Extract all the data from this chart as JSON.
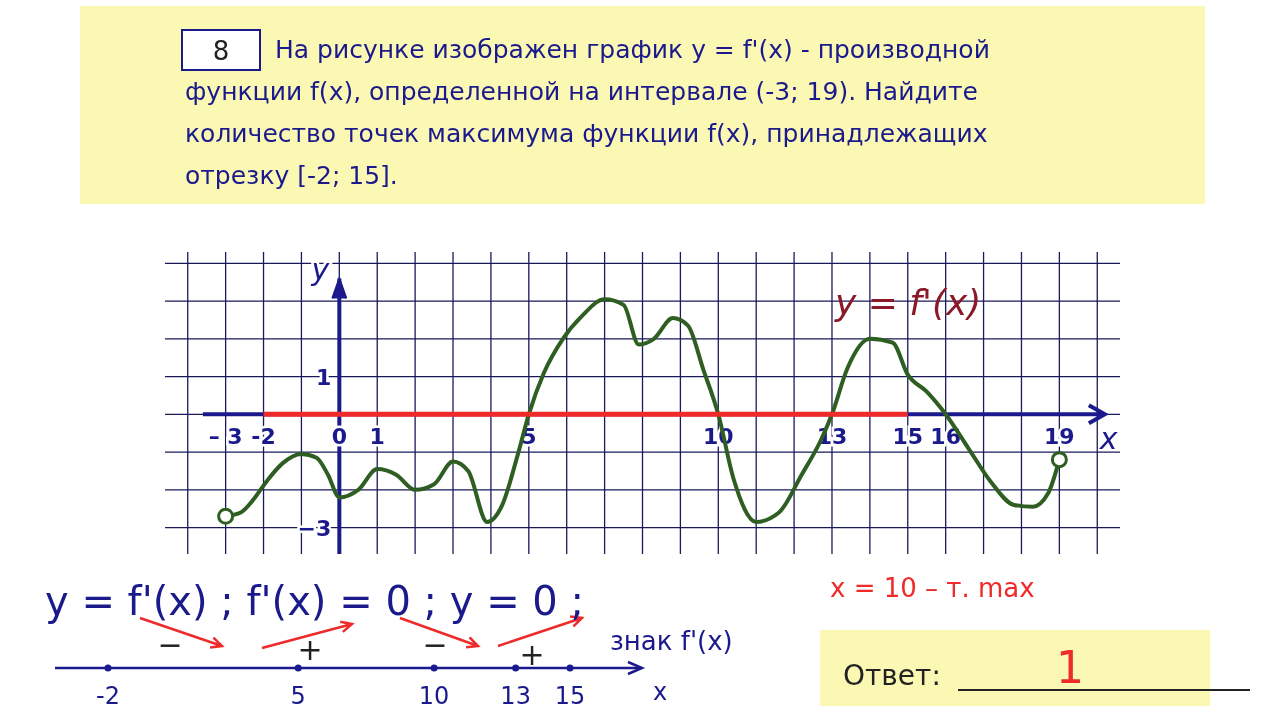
{
  "chart_data": {
    "type": "line",
    "title": "На рисунке изображен график y = f'(x) - производной функции f(x), определенной на интервале (-3; 19). Найдите количество точек максимума функции f(x), принадлежащих отрезку [-2; 15].",
    "xlabel": "x",
    "ylabel": "y",
    "xlim": [
      -4.6,
      20.6
    ],
    "ylim": [
      -3.7,
      4.3
    ],
    "xticks": [
      {
        "value": -4,
        "label": null
      },
      {
        "value": -3,
        "label": "– 3"
      },
      {
        "value": -2,
        "label": "-2"
      },
      {
        "value": -1,
        "label": null
      },
      {
        "value": 0,
        "label": "0"
      },
      {
        "value": 1,
        "label": "1"
      },
      {
        "value": 2,
        "label": null
      },
      {
        "value": 3,
        "label": null
      },
      {
        "value": 4,
        "label": null
      },
      {
        "value": 5,
        "label": "5"
      },
      {
        "value": 6,
        "label": null
      },
      {
        "value": 7,
        "label": null
      },
      {
        "value": 8,
        "label": null
      },
      {
        "value": 9,
        "label": null
      },
      {
        "value": 10,
        "label": "10"
      },
      {
        "value": 11,
        "label": null
      },
      {
        "value": 12,
        "label": null
      },
      {
        "value": 13,
        "label": "13"
      },
      {
        "value": 14,
        "label": null
      },
      {
        "value": 15,
        "label": "15"
      },
      {
        "value": 16,
        "label": "16"
      },
      {
        "value": 17,
        "label": null
      },
      {
        "value": 18,
        "label": null
      },
      {
        "value": 19,
        "label": "19"
      },
      {
        "value": 20,
        "label": null
      }
    ],
    "yticks": [
      {
        "value": -3,
        "label": "−3"
      },
      {
        "value": -2,
        "label": null
      },
      {
        "value": -1,
        "label": null
      },
      {
        "value": 0,
        "label": null
      },
      {
        "value": 1,
        "label": "1"
      },
      {
        "value": 2,
        "label": null
      },
      {
        "value": 3,
        "label": null
      },
      {
        "value": 4,
        "label": null
      }
    ],
    "grid": true,
    "marker": "none",
    "line_style": "solid",
    "series": [
      {
        "name": "y = f'(x)",
        "color": "#2f5e22",
        "x": [
          -3,
          -2.6,
          -2.3,
          -1.9,
          -1.5,
          -1.0,
          -0.6,
          -0.3,
          0,
          0.5,
          1,
          1.5,
          2,
          2.5,
          3,
          3.4,
          3.9,
          4.3,
          4.7,
          5,
          5.4,
          5.9,
          6.4,
          7,
          7.5,
          7.9,
          8.3,
          8.8,
          9.2,
          9.6,
          10,
          10.4,
          11,
          11.6,
          12.2,
          12.7,
          13,
          13.4,
          14,
          14.6,
          15,
          15.5,
          16,
          16.6,
          17.2,
          17.8,
          18.3,
          18.7,
          19
        ],
        "values": [
          -2.7,
          -2.6,
          -2.3,
          -1.75,
          -1.3,
          -1.05,
          -1.15,
          -1.6,
          -2.2,
          -2.0,
          -1.45,
          -1.6,
          -2.0,
          -1.85,
          -1.25,
          -1.5,
          -2.85,
          -2.4,
          -1.1,
          0,
          1.1,
          2.0,
          2.6,
          3.05,
          2.9,
          1.85,
          2.0,
          2.55,
          2.35,
          1.2,
          0,
          -1.7,
          -2.85,
          -2.6,
          -1.6,
          -0.7,
          0,
          1.2,
          2.0,
          1.9,
          1.05,
          0.6,
          0,
          -0.9,
          -1.8,
          -2.4,
          -2.45,
          -2.1,
          -1.2
        ]
      },
      {
        "color": "#ee2a2a",
        "x": [
          -2,
          15
        ],
        "values": [
          0,
          0
        ]
      }
    ],
    "annotations": [
      "8",
      "y = f'(x) ; f'(x) = 0 ; y = 0 ;",
      "x = 10 – т. max",
      "знак f'(x)",
      "Ответ:",
      "1",
      "−",
      "+",
      "−",
      "+",
      "-2",
      "5",
      "10",
      "13",
      "15",
      "x"
    ]
  }
}
